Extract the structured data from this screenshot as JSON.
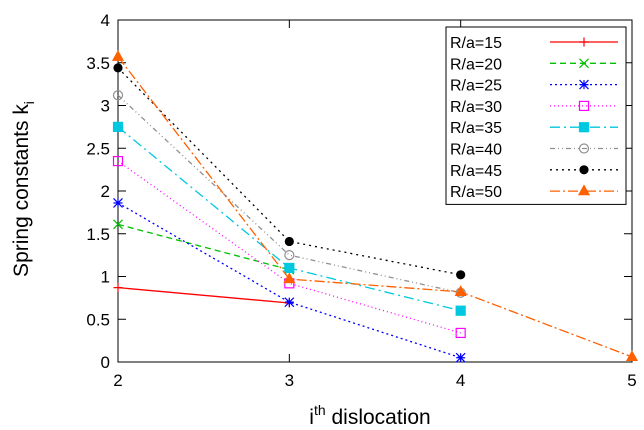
{
  "chart_data": {
    "type": "line",
    "title": "",
    "xlabel": {
      "base": "i",
      "sup": "th",
      "rest": " dislocation"
    },
    "ylabel": {
      "base": "Spring constants k",
      "sub": "i"
    },
    "xlim": [
      2,
      5
    ],
    "ylim": [
      0,
      4
    ],
    "x_ticks": [
      2,
      3,
      4,
      5
    ],
    "y_ticks": [
      0,
      0.5,
      1,
      1.5,
      2,
      2.5,
      3,
      3.5,
      4
    ],
    "x_tick_labels": [
      "2",
      "3",
      "4",
      "5"
    ],
    "y_tick_labels": [
      "0",
      "0.5",
      "1",
      "1.5",
      "2",
      "2.5",
      "3",
      "3.5",
      "4"
    ],
    "grid": false,
    "legend_position": "top-right",
    "series": [
      {
        "name": "R/a=15",
        "color": "#ff0000",
        "marker": "plus",
        "dash": "",
        "x": [
          2,
          3
        ],
        "y": [
          0.87,
          0.69
        ]
      },
      {
        "name": "R/a=20",
        "color": "#00c000",
        "marker": "cross",
        "dash": "6,4",
        "x": [
          2,
          3
        ],
        "y": [
          1.61,
          1.08
        ]
      },
      {
        "name": "R/a=25",
        "color": "#0000ff",
        "marker": "star",
        "dash": "2,3",
        "x": [
          2,
          3,
          4
        ],
        "y": [
          1.86,
          0.7,
          0.05
        ]
      },
      {
        "name": "R/a=30",
        "color": "#ff00ff",
        "marker": "square-open",
        "dash": "1,3",
        "x": [
          2,
          3,
          4
        ],
        "y": [
          2.35,
          0.92,
          0.34
        ]
      },
      {
        "name": "R/a=35",
        "color": "#00c8e0",
        "marker": "square-filled",
        "dash": "10,4,2,4",
        "x": [
          2,
          3,
          4
        ],
        "y": [
          2.75,
          1.1,
          0.6
        ]
      },
      {
        "name": "R/a=40",
        "color": "#909090",
        "marker": "circle-open",
        "dash": "5,3,1,3,1,3",
        "x": [
          2,
          3,
          4
        ],
        "y": [
          3.12,
          1.25,
          0.81
        ]
      },
      {
        "name": "R/a=45",
        "color": "#000000",
        "marker": "circle-filled",
        "dash": "2,4",
        "x": [
          2,
          3,
          4
        ],
        "y": [
          3.44,
          1.41,
          1.02
        ]
      },
      {
        "name": "R/a=50",
        "color": "#ff6000",
        "marker": "triangle",
        "dash": "10,3,2,3",
        "x": [
          2,
          3,
          4,
          5
        ],
        "y": [
          3.57,
          0.97,
          0.82,
          0.06
        ]
      }
    ]
  }
}
